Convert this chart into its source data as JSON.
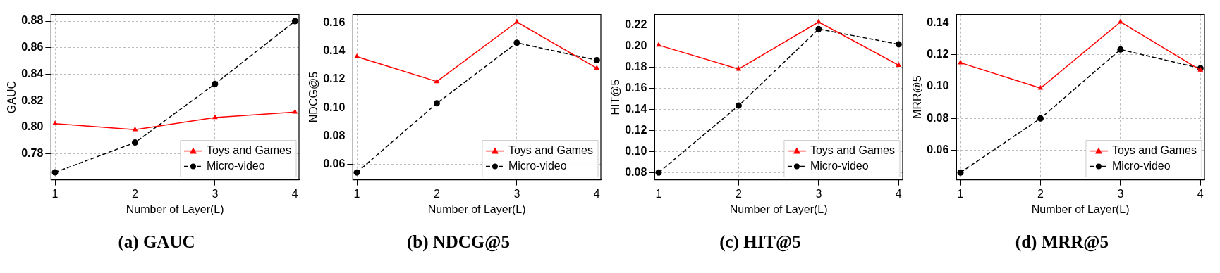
{
  "chart_data": [
    {
      "type": "line",
      "title": "(a) GAUC",
      "xlabel": "Number of Layer(L)",
      "ylabel": "GAUC",
      "x": [
        1,
        2,
        3,
        4
      ],
      "xlim": [
        0.95,
        4.05
      ],
      "xticks": [
        1,
        2,
        3,
        4
      ],
      "ylim": [
        0.7604,
        0.885
      ],
      "yticks": [
        0.78,
        {
          "value": 0.8,
          "label": "0.80"
        },
        0.82,
        0.84,
        0.86,
        0.88
      ],
      "grid": true,
      "legend": "bottom right",
      "series": [
        {
          "name": "Toys and Games",
          "color": "#ff0000",
          "marker": "triangle",
          "line_style": "solid",
          "values": [
            0.8027,
            0.7982,
            0.8074,
            0.8115
          ]
        },
        {
          "name": "Micro-video",
          "color": "#000000",
          "marker": "circle",
          "line_style": "dashed",
          "values": [
            0.766,
            0.7885,
            0.8327,
            0.88
          ]
        }
      ]
    },
    {
      "type": "line",
      "title": "(b) NDCG@5",
      "xlabel": "Number of Layer(L)",
      "ylabel": "NDCG@5",
      "x": [
        1,
        2,
        3,
        4
      ],
      "xlim": [
        0.95,
        4.05
      ],
      "xticks": [
        1,
        2,
        3,
        4
      ],
      "ylim": [
        0.0491,
        0.166
      ],
      "yticks": [
        0.06,
        0.08,
        {
          "value": 0.1,
          "label": "0.10"
        },
        0.12,
        0.14,
        0.16
      ],
      "grid": true,
      "legend": "bottom right",
      "series": [
        {
          "name": "Toys and Games",
          "color": "#ff0000",
          "marker": "triangle",
          "line_style": "solid",
          "values": [
            0.1362,
            0.1186,
            0.1607,
            0.1281
          ]
        },
        {
          "name": "Micro-video",
          "color": "#000000",
          "marker": "circle",
          "line_style": "dashed",
          "values": [
            0.0543,
            0.1032,
            0.146,
            0.1337
          ]
        }
      ]
    },
    {
      "type": "line",
      "title": "(c) HIT@5",
      "xlabel": "Number of Layer(L)",
      "ylabel": "HIT@5",
      "x": [
        1,
        2,
        3,
        4
      ],
      "xlim": [
        0.95,
        4.05
      ],
      "xticks": [
        1,
        2,
        3,
        4
      ],
      "ylim": [
        0.0731,
        0.2297
      ],
      "yticks": [
        0.08,
        {
          "value": 0.1,
          "label": "0.10"
        },
        0.12,
        0.14,
        0.16,
        0.18,
        {
          "value": 0.2,
          "label": "0.20"
        },
        0.22
      ],
      "grid": true,
      "legend": "bottom right",
      "series": [
        {
          "name": "Toys and Games",
          "color": "#ff0000",
          "marker": "triangle",
          "line_style": "solid",
          "values": [
            0.2007,
            0.178,
            0.2226,
            0.1817
          ]
        },
        {
          "name": "Micro-video",
          "color": "#000000",
          "marker": "circle",
          "line_style": "dashed",
          "values": [
            0.08,
            0.1434,
            0.2159,
            0.2015
          ]
        }
      ]
    },
    {
      "type": "line",
      "title": "(d) MRR@5",
      "xlabel": "Number of Layer(L)",
      "ylabel": "MRR@5",
      "x": [
        1,
        2,
        3,
        4
      ],
      "xlim": [
        0.95,
        4.05
      ],
      "xticks": [
        1,
        2,
        3,
        4
      ],
      "ylim": [
        0.0414,
        0.1453
      ],
      "yticks": [
        0.06,
        0.08,
        {
          "value": 0.1,
          "label": "0.10"
        },
        0.12,
        0.14
      ],
      "grid": true,
      "legend": "bottom right",
      "series": [
        {
          "name": "Toys and Games",
          "color": "#ff0000",
          "marker": "triangle",
          "line_style": "solid",
          "values": [
            0.115,
            0.099,
            0.1406,
            0.1104
          ]
        },
        {
          "name": "Micro-video",
          "color": "#000000",
          "marker": "circle",
          "line_style": "dashed",
          "values": [
            0.046,
            0.08,
            0.1233,
            0.1115
          ]
        }
      ]
    }
  ]
}
